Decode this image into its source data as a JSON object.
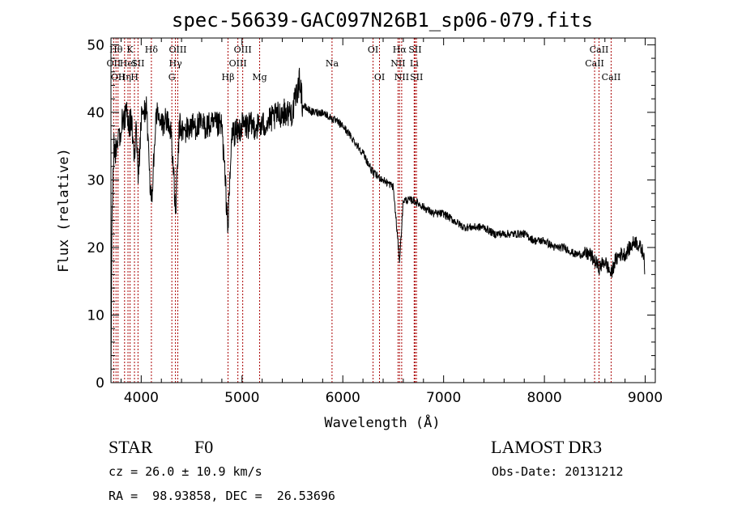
{
  "chart_data": {
    "type": "line",
    "title": "spec-56639-GAC097N26B1_sp06-079.fits",
    "xlabel": "Wavelength (Å)",
    "ylabel": "Flux (relative)",
    "xlim": [
      3700,
      9100
    ],
    "ylim": [
      0,
      51
    ],
    "xticks": [
      4000,
      5000,
      6000,
      7000,
      8000,
      9000
    ],
    "yticks": [
      0,
      10,
      20,
      30,
      40,
      50
    ],
    "x_tick_labels": [
      "4000",
      "5000",
      "6000",
      "7000",
      "8000",
      "9000"
    ],
    "y_tick_labels": [
      "0",
      "10",
      "20",
      "30",
      "40",
      "50"
    ],
    "spectrum_anchor_x": [
      3700,
      3710,
      3730,
      3760,
      3800,
      3850,
      3880,
      3900,
      3933,
      3950,
      3970,
      4000,
      4050,
      4101,
      4150,
      4200,
      4250,
      4300,
      4340,
      4380,
      4420,
      4500,
      4600,
      4700,
      4800,
      4861,
      4900,
      4950,
      5000,
      5100,
      5200,
      5300,
      5400,
      5500,
      5577,
      5600,
      5700,
      5800,
      5900,
      6000,
      6100,
      6200,
      6300,
      6400,
      6500,
      6563,
      6600,
      6700,
      6800,
      6900,
      7000,
      7100,
      7200,
      7300,
      7400,
      7500,
      7600,
      7700,
      7800,
      7900,
      8000,
      8100,
      8200,
      8300,
      8400,
      8450,
      8500,
      8542,
      8600,
      8662,
      8700,
      8750,
      8800,
      8850,
      8900,
      8950,
      8990,
      9000
    ],
    "spectrum_anchor_y": [
      0,
      25,
      35,
      34,
      38,
      40,
      38,
      39,
      33,
      40,
      30,
      39,
      41,
      26,
      40,
      38,
      39,
      37,
      25,
      38,
      37,
      38,
      38,
      38,
      38,
      23,
      37,
      37,
      38,
      38,
      38,
      39,
      40,
      40,
      45,
      41,
      40,
      40,
      39,
      38,
      36,
      34,
      31,
      30,
      29,
      18,
      27,
      27,
      26,
      25,
      25,
      24,
      23,
      23,
      23,
      22,
      22,
      22,
      22,
      21,
      21,
      20,
      20,
      19,
      19,
      19,
      18,
      17,
      18,
      16,
      18,
      19,
      19,
      20,
      21,
      20,
      19,
      14
    ],
    "spectral_lines": [
      {
        "wl": 3727,
        "row": 1,
        "label": "OII"
      },
      {
        "wl": 3750,
        "row": 0,
        "label": "Hθ"
      },
      {
        "wl": 3770,
        "row": 2,
        "label": "OII"
      },
      {
        "wl": 3835,
        "row": 2,
        "label": "Hη"
      },
      {
        "wl": 3869,
        "row": 1,
        "label": "HeI"
      },
      {
        "wl": 3889,
        "row": 0,
        "label": "K"
      },
      {
        "wl": 3933,
        "row": 2,
        "label": "H"
      },
      {
        "wl": 3968,
        "row": 1,
        "label": "SII"
      },
      {
        "wl": 4101,
        "row": 0,
        "label": "Hδ"
      },
      {
        "wl": 4304,
        "row": 2,
        "label": "G"
      },
      {
        "wl": 4340,
        "row": 1,
        "label": "Hγ"
      },
      {
        "wl": 4363,
        "row": 0,
        "label": "OIII"
      },
      {
        "wl": 4861,
        "row": 2,
        "label": "Hβ"
      },
      {
        "wl": 4959,
        "row": 1,
        "label": "OIII"
      },
      {
        "wl": 5007,
        "row": 0,
        "label": "OIII"
      },
      {
        "wl": 5175,
        "row": 2,
        "label": "Mg"
      },
      {
        "wl": 5893,
        "row": 1,
        "label": "Na"
      },
      {
        "wl": 6300,
        "row": 0,
        "label": "OI"
      },
      {
        "wl": 6364,
        "row": 2,
        "label": "OI"
      },
      {
        "wl": 6548,
        "row": 1,
        "label": "NII"
      },
      {
        "wl": 6563,
        "row": 0,
        "label": "Hα"
      },
      {
        "wl": 6584,
        "row": 2,
        "label": "NII"
      },
      {
        "wl": 6708,
        "row": 1,
        "label": "Li"
      },
      {
        "wl": 6717,
        "row": 0,
        "label": "SII"
      },
      {
        "wl": 6731,
        "row": 2,
        "label": "SII"
      },
      {
        "wl": 8498,
        "row": 1,
        "label": "CaII"
      },
      {
        "wl": 8542,
        "row": 0,
        "label": "CaII"
      },
      {
        "wl": 8662,
        "row": 2,
        "label": "CaII"
      }
    ]
  },
  "info": {
    "class": "STAR",
    "subclass": "F0",
    "survey": "LAMOST DR3",
    "cz": "cz = 26.0 ± 10.9 km/s",
    "obs_date": "Obs-Date: 20131212",
    "coords": "RA =  98.93858, DEC =  26.53696"
  }
}
